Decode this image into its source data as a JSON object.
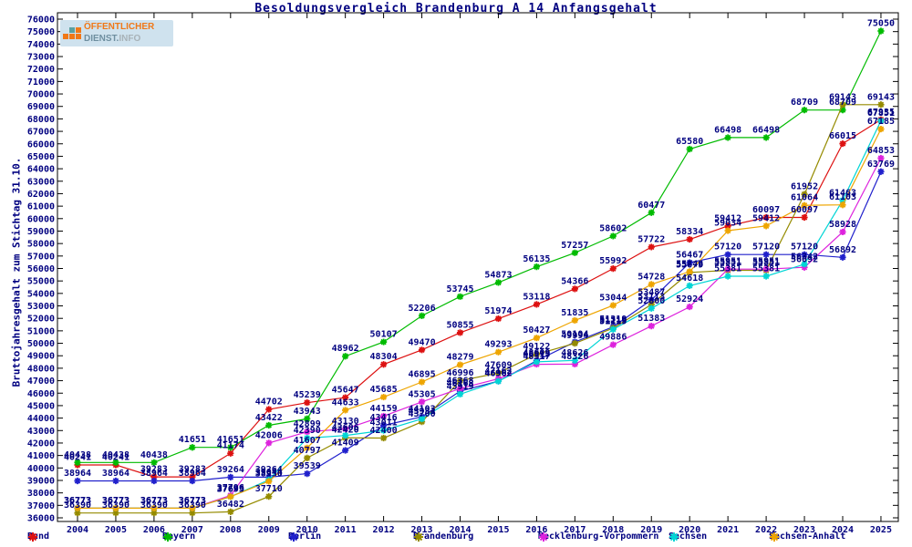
{
  "title": "Besoldungsvergleich Brandenburg A 14 Anfangsgehalt",
  "y_axis_label": "Bruttojahresgehalt zum Stichtag 31.10.",
  "logo": {
    "line1": "ÖFFENTLICHER",
    "line2a": "DIENST.",
    "line2b": "INFO"
  },
  "text_color": "#000080",
  "chart_data": {
    "type": "line",
    "x": [
      2004,
      2005,
      2006,
      2007,
      2008,
      2009,
      2010,
      2011,
      2012,
      2013,
      2014,
      2015,
      2016,
      2017,
      2018,
      2019,
      2020,
      2021,
      2022,
      2023,
      2024,
      2025
    ],
    "xlabel": "",
    "ylabel": "Bruttojahresgehalt zum Stichtag 31.10.",
    "ylim": [
      36000,
      76000
    ],
    "ytick_step": 1000,
    "grid": false,
    "legend_position": "bottom",
    "marker": "star",
    "point_labels": true,
    "series": [
      {
        "name": "Bund",
        "color": "#dd1111",
        "values": [
          40241,
          40241,
          39283,
          39283,
          41174,
          44702,
          45239,
          45647,
          48304,
          49470,
          50855,
          51974,
          53118,
          54366,
          55992,
          57722,
          58334,
          59412,
          60097,
          60097,
          66015,
          67935
        ]
      },
      {
        "name": "Bayern",
        "color": "#00bb00",
        "values": [
          40438,
          40438,
          40438,
          41651,
          41651,
          43422,
          43943,
          48962,
          50107,
          52206,
          53745,
          54873,
          56135,
          57257,
          58602,
          60477,
          65580,
          66498,
          66498,
          68709,
          68709,
          75050
        ]
      },
      {
        "name": "Berlin",
        "color": "#2020cc",
        "values": [
          38964,
          38964,
          38964,
          38964,
          39264,
          39264,
          39539,
          41409,
          43416,
          44103,
          46168,
          46962,
          48609,
          50104,
          51319,
          53487,
          56467,
          57120,
          57120,
          57120,
          56892,
          63769
        ]
      },
      {
        "name": "Brandenburg",
        "color": "#958b00",
        "values": [
          36390,
          36390,
          36390,
          36390,
          36482,
          37710,
          40797,
          42420,
          42400,
          43700,
          46996,
          47609,
          49122,
          49994,
          51219,
          53113,
          55679,
          55851,
          55851,
          61952,
          69143,
          69143
        ]
      },
      {
        "name": "Mecklenburg-Vorpommern",
        "color": "#dd22dd",
        "values": [
          36773,
          36773,
          36773,
          36773,
          37796,
          42006,
          42899,
          43130,
          44159,
          45305,
          46368,
          47162,
          48317,
          48326,
          49886,
          51383,
          52924,
          55951,
          55951,
          56092,
          58928,
          64853
        ]
      },
      {
        "name": "Sachsen",
        "color": "#00d5d5",
        "values": [
          36773,
          36773,
          36773,
          36773,
          37695,
          39044,
          42390,
          42606,
          43011,
          43931,
          45919,
          46962,
          48513,
          48626,
          51119,
          52800,
          54618,
          55381,
          55381,
          56342,
          61463,
          67851
        ]
      },
      {
        "name": "Sachsen-Anhalt",
        "color": "#eea500",
        "values": [
          36773,
          36773,
          36773,
          36773,
          37695,
          38930,
          41607,
          44633,
          45685,
          46895,
          48279,
          49293,
          50427,
          51835,
          53044,
          54728,
          55748,
          59034,
          59412,
          61064,
          61103,
          67185
        ]
      }
    ]
  }
}
